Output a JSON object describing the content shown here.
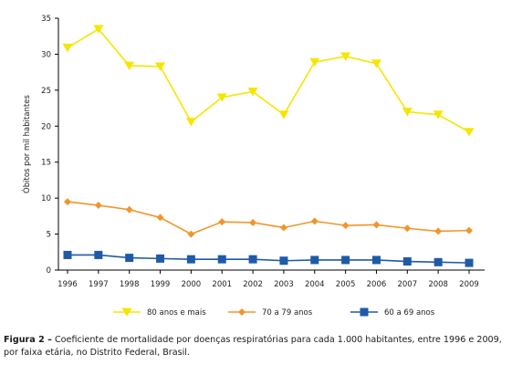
{
  "chart_data": {
    "type": "line",
    "x": [
      "1996",
      "1997",
      "1998",
      "1999",
      "2000",
      "2001",
      "2002",
      "2003",
      "2004",
      "2005",
      "2006",
      "2007",
      "2008",
      "2009"
    ],
    "ylabel": "Óbitos por mil habitantes",
    "xlabel": "",
    "ylim": [
      0,
      35
    ],
    "yticks": [
      0,
      5,
      10,
      15,
      20,
      25,
      30,
      35
    ],
    "grid": false,
    "legend_position": "bottom",
    "series": [
      {
        "name": "80 anos e mais",
        "color": "#f5e600",
        "marker": "triangle-down",
        "values": [
          30.9,
          33.5,
          28.4,
          28.3,
          20.6,
          24.0,
          24.8,
          21.6,
          28.9,
          29.7,
          28.7,
          22.0,
          21.6,
          19.2
        ]
      },
      {
        "name": "70 a 79 anos",
        "color": "#f0962a",
        "marker": "diamond",
        "values": [
          9.5,
          9.0,
          8.4,
          7.3,
          5.0,
          6.7,
          6.6,
          5.9,
          6.8,
          6.2,
          6.3,
          5.8,
          5.4,
          5.5
        ]
      },
      {
        "name": "60 a 69 anos",
        "color": "#1f5aa8",
        "marker": "square",
        "values": [
          2.1,
          2.1,
          1.7,
          1.6,
          1.5,
          1.5,
          1.5,
          1.3,
          1.4,
          1.4,
          1.4,
          1.2,
          1.1,
          1.0
        ]
      }
    ]
  },
  "caption": {
    "label": "Figura 2 –",
    "text": "Coeficiente de mortalidade por doenças respiratórias para cada 1.000 habitantes, entre 1996 e 2009, por faixa etária, no Distrito Federal, Brasil."
  }
}
